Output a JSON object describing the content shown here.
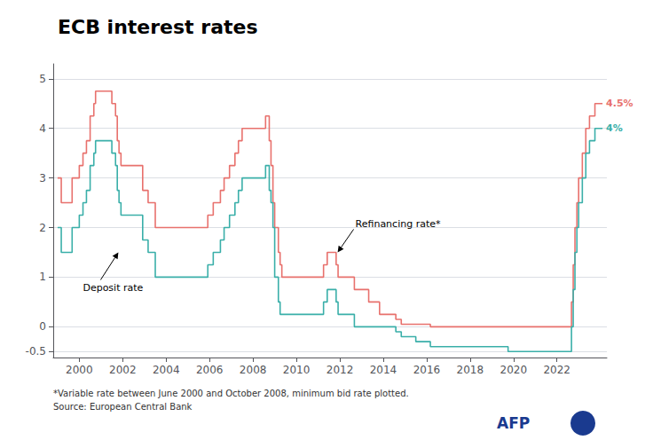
{
  "chart_data": {
    "type": "step",
    "title": "ECB interest rates",
    "footnote": "*Variable rate between June 2000 and October 2008, minimum bid rate plotted.\nSource: European Central Bank",
    "logo": "AFP",
    "xlim": [
      1998.8,
      2024.3
    ],
    "xticks": [
      2000,
      2002,
      2004,
      2006,
      2008,
      2010,
      2012,
      2014,
      2016,
      2018,
      2020,
      2022
    ],
    "ylim": [
      -0.62,
      5.3
    ],
    "yticks": [
      -0.5,
      0,
      1,
      2,
      3,
      4,
      5
    ],
    "grid": true,
    "annotations": [
      {
        "text": "Deposit rate",
        "x": 2001.8,
        "y": 1.5
      },
      {
        "text": "Refinancing rate*",
        "x": 2011.9,
        "y": 1.5
      }
    ],
    "series": [
      {
        "name": "Refinancing rate*",
        "color": "#e8716d",
        "values": [
          [
            1999.0,
            3.0
          ],
          [
            1999.17,
            2.5
          ],
          [
            1999.58,
            2.5
          ],
          [
            1999.67,
            3.0
          ],
          [
            2000.0,
            3.25
          ],
          [
            2000.17,
            3.5
          ],
          [
            2000.33,
            3.75
          ],
          [
            2000.5,
            4.25
          ],
          [
            2000.67,
            4.5
          ],
          [
            2000.75,
            4.75
          ],
          [
            2001.5,
            4.5
          ],
          [
            2001.67,
            4.25
          ],
          [
            2001.75,
            3.75
          ],
          [
            2001.83,
            3.5
          ],
          [
            2001.92,
            3.25
          ],
          [
            2002.83,
            3.25
          ],
          [
            2002.92,
            2.75
          ],
          [
            2003.17,
            2.5
          ],
          [
            2003.5,
            2.0
          ],
          [
            2005.83,
            2.0
          ],
          [
            2005.92,
            2.25
          ],
          [
            2006.17,
            2.5
          ],
          [
            2006.5,
            2.75
          ],
          [
            2006.67,
            3.0
          ],
          [
            2006.92,
            3.25
          ],
          [
            2007.17,
            3.5
          ],
          [
            2007.33,
            3.75
          ],
          [
            2007.5,
            4.0
          ],
          [
            2008.58,
            4.25
          ],
          [
            2008.75,
            3.75
          ],
          [
            2008.83,
            3.25
          ],
          [
            2008.92,
            2.5
          ],
          [
            2009.0,
            2.0
          ],
          [
            2009.17,
            1.5
          ],
          [
            2009.25,
            1.25
          ],
          [
            2009.33,
            1.0
          ],
          [
            2011.25,
            1.25
          ],
          [
            2011.42,
            1.5
          ],
          [
            2011.83,
            1.25
          ],
          [
            2011.92,
            1.0
          ],
          [
            2012.67,
            0.75
          ],
          [
            2013.33,
            0.5
          ],
          [
            2013.83,
            0.25
          ],
          [
            2014.58,
            0.15
          ],
          [
            2014.83,
            0.05
          ],
          [
            2016.17,
            0.0
          ],
          [
            2022.58,
            0.0
          ],
          [
            2022.67,
            0.5
          ],
          [
            2022.75,
            1.25
          ],
          [
            2022.83,
            2.0
          ],
          [
            2022.92,
            2.5
          ],
          [
            2023.0,
            3.0
          ],
          [
            2023.17,
            3.5
          ],
          [
            2023.33,
            4.0
          ],
          [
            2023.5,
            4.25
          ],
          [
            2023.75,
            4.5
          ],
          [
            2024.1,
            4.5
          ]
        ],
        "value_labels": [
          null,
          null,
          null,
          null,
          null,
          null,
          null,
          null,
          null,
          null,
          null,
          null,
          null,
          null,
          null,
          null,
          null,
          null,
          null,
          null,
          null,
          null,
          null,
          null,
          null,
          null,
          null,
          null,
          null,
          null,
          null,
          null,
          null,
          null,
          null,
          null,
          null,
          null,
          null,
          null,
          null,
          null,
          null,
          null,
          null,
          null,
          null,
          null,
          null,
          null,
          null,
          null,
          null,
          null,
          null,
          null,
          "4.5%"
        ]
      },
      {
        "name": "Deposit rate",
        "color": "#3aafa9",
        "values": [
          [
            1999.0,
            2.0
          ],
          [
            1999.17,
            1.5
          ],
          [
            1999.58,
            1.5
          ],
          [
            1999.67,
            2.0
          ],
          [
            2000.0,
            2.25
          ],
          [
            2000.17,
            2.5
          ],
          [
            2000.33,
            2.75
          ],
          [
            2000.5,
            3.25
          ],
          [
            2000.67,
            3.5
          ],
          [
            2000.75,
            3.75
          ],
          [
            2001.5,
            3.5
          ],
          [
            2001.67,
            3.25
          ],
          [
            2001.75,
            2.75
          ],
          [
            2001.83,
            2.5
          ],
          [
            2001.92,
            2.25
          ],
          [
            2002.83,
            2.25
          ],
          [
            2002.92,
            1.75
          ],
          [
            2003.17,
            1.5
          ],
          [
            2003.5,
            1.0
          ],
          [
            2005.83,
            1.0
          ],
          [
            2005.92,
            1.25
          ],
          [
            2006.17,
            1.5
          ],
          [
            2006.5,
            1.75
          ],
          [
            2006.67,
            2.0
          ],
          [
            2006.92,
            2.25
          ],
          [
            2007.17,
            2.5
          ],
          [
            2007.33,
            2.75
          ],
          [
            2007.5,
            3.0
          ],
          [
            2008.58,
            3.25
          ],
          [
            2008.75,
            2.75
          ],
          [
            2008.83,
            2.5
          ],
          [
            2008.92,
            2.0
          ],
          [
            2009.0,
            1.0
          ],
          [
            2009.17,
            0.5
          ],
          [
            2009.25,
            0.25
          ],
          [
            2009.33,
            0.25
          ],
          [
            2011.25,
            0.5
          ],
          [
            2011.42,
            0.75
          ],
          [
            2011.83,
            0.5
          ],
          [
            2011.92,
            0.25
          ],
          [
            2012.5,
            0.25
          ],
          [
            2012.67,
            0.0
          ],
          [
            2014.58,
            -0.1
          ],
          [
            2014.83,
            -0.2
          ],
          [
            2015.5,
            -0.3
          ],
          [
            2016.17,
            -0.4
          ],
          [
            2019.75,
            -0.5
          ],
          [
            2022.58,
            -0.5
          ],
          [
            2022.67,
            0.0
          ],
          [
            2022.75,
            0.75
          ],
          [
            2022.83,
            1.5
          ],
          [
            2022.92,
            2.0
          ],
          [
            2023.0,
            2.5
          ],
          [
            2023.17,
            3.0
          ],
          [
            2023.33,
            3.5
          ],
          [
            2023.5,
            3.75
          ],
          [
            2023.75,
            4.0
          ],
          [
            2024.1,
            4.0
          ]
        ],
        "value_labels": [
          null,
          null,
          null,
          null,
          null,
          null,
          null,
          null,
          null,
          null,
          null,
          null,
          null,
          null,
          null,
          null,
          null,
          null,
          null,
          null,
          null,
          null,
          null,
          null,
          null,
          null,
          null,
          null,
          null,
          null,
          null,
          null,
          null,
          null,
          null,
          null,
          null,
          null,
          null,
          null,
          null,
          null,
          null,
          null,
          null,
          null,
          null,
          null,
          null,
          null,
          null,
          null,
          null,
          null,
          null,
          null,
          null,
          "4%"
        ]
      }
    ]
  }
}
